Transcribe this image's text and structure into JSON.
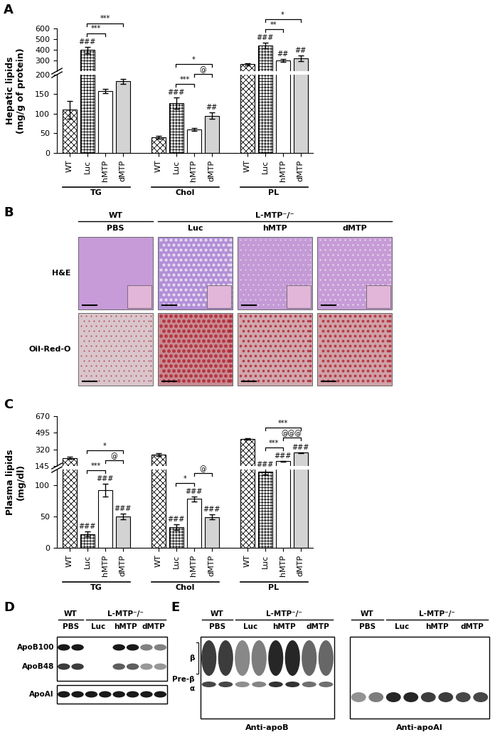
{
  "chart_data": [
    {
      "panel": "A",
      "type": "bar",
      "y_label": "Hepatic lipids\n(mg/g of protein)",
      "categories": [
        "TG",
        "Chol",
        "PL"
      ],
      "series": [
        {
          "name": "WT",
          "color": "#ffffff",
          "values": [
            110,
            40,
            265
          ],
          "errors": [
            22,
            3,
            10
          ]
        },
        {
          "name": "Luc",
          "color": "#ffffff",
          "values": [
            400,
            127,
            440
          ],
          "errors": [
            30,
            15,
            25
          ]
        },
        {
          "name": "hMTP",
          "color": "#ffffff",
          "values": [
            158,
            60,
            300
          ],
          "errors": [
            5,
            4,
            12
          ]
        },
        {
          "name": "dMTP",
          "color": "#d3d3d3",
          "values": [
            183,
            95,
            320
          ],
          "errors": [
            6,
            8,
            25
          ]
        }
      ],
      "ylim": [
        [
          0,
          200
        ],
        [
          200,
          600
        ]
      ],
      "yticks": [
        [
          0,
          50,
          100,
          150,
          200
        ],
        [
          300,
          400,
          500,
          600
        ]
      ],
      "markers": [
        {
          "category": "TG",
          "series": "Luc",
          "label": "###"
        },
        {
          "category": "Chol",
          "series": "Luc",
          "label": "###"
        },
        {
          "category": "Chol",
          "series": "dMTP",
          "label": "##"
        },
        {
          "category": "PL",
          "series": "Luc",
          "label": "###"
        },
        {
          "category": "PL",
          "series": "hMTP",
          "label": "##"
        },
        {
          "category": "PL",
          "series": "dMTP",
          "label": "##"
        }
      ],
      "comparisons": [
        {
          "category": "TG",
          "series": [
            "Luc",
            "hMTP"
          ],
          "label": "***"
        },
        {
          "category": "TG",
          "series": [
            "Luc",
            "dMTP"
          ],
          "label": "***"
        },
        {
          "category": "Chol",
          "series": [
            "Luc",
            "hMTP"
          ],
          "label": "***"
        },
        {
          "category": "Chol",
          "series": [
            "Luc",
            "dMTP"
          ],
          "label": "*"
        },
        {
          "category": "Chol",
          "series": [
            "hMTP",
            "dMTP"
          ],
          "label": "@"
        },
        {
          "category": "PL",
          "series": [
            "Luc",
            "hMTP"
          ],
          "label": "**"
        },
        {
          "category": "PL",
          "series": [
            "Luc",
            "dMTP"
          ],
          "label": "*"
        }
      ]
    },
    {
      "panel": "C",
      "type": "bar",
      "y_label": "Plasma lipids\n(mg/dl)",
      "categories": [
        "TG",
        "Chol",
        "PL"
      ],
      "series": [
        {
          "name": "WT",
          "color": "#ffffff",
          "values": [
            230,
            265,
            430
          ],
          "errors": [
            12,
            15,
            10
          ]
        },
        {
          "name": "Luc",
          "color": "#ffffff",
          "values": [
            22,
            33,
            122
          ],
          "errors": [
            4,
            5,
            5
          ]
        },
        {
          "name": "hMTP",
          "color": "#ffffff",
          "values": [
            92,
            78,
            195
          ],
          "errors": [
            10,
            4,
            5
          ]
        },
        {
          "name": "dMTP",
          "color": "#d3d3d3",
          "values": [
            50,
            49,
            285
          ],
          "errors": [
            5,
            4,
            5
          ]
        }
      ],
      "ylim": [
        [
          0,
          125
        ],
        [
          145,
          670
        ]
      ],
      "yticks": [
        [
          0,
          50,
          100
        ],
        [
          145,
          320,
          495,
          670
        ]
      ],
      "markers": [
        {
          "category": "TG",
          "series": "Luc",
          "label": "###"
        },
        {
          "category": "TG",
          "series": "hMTP",
          "label": "###"
        },
        {
          "category": "TG",
          "series": "dMTP",
          "label": "###"
        },
        {
          "category": "Chol",
          "series": "Luc",
          "label": "###"
        },
        {
          "category": "Chol",
          "series": "hMTP",
          "label": "###"
        },
        {
          "category": "Chol",
          "series": "dMTP",
          "label": "###"
        },
        {
          "category": "PL",
          "series": "Luc",
          "label": "###"
        },
        {
          "category": "PL",
          "series": "hMTP",
          "label": "###"
        },
        {
          "category": "PL",
          "series": "dMTP",
          "label": "###"
        }
      ],
      "comparisons": [
        {
          "category": "TG",
          "series": [
            "Luc",
            "hMTP"
          ],
          "label": "***"
        },
        {
          "category": "TG",
          "series": [
            "Luc",
            "dMTP"
          ],
          "label": "*"
        },
        {
          "category": "TG",
          "series": [
            "hMTP",
            "dMTP"
          ],
          "label": "@"
        },
        {
          "category": "Chol",
          "series": [
            "Luc",
            "hMTP"
          ],
          "label": "*"
        },
        {
          "category": "Chol",
          "series": [
            "hMTP",
            "dMTP"
          ],
          "label": "@"
        },
        {
          "category": "PL",
          "series": [
            "Luc",
            "hMTP"
          ],
          "label": "***"
        },
        {
          "category": "PL",
          "series": [
            "Luc",
            "dMTP"
          ],
          "label": "***"
        },
        {
          "category": "PL",
          "series": [
            "hMTP",
            "dMTP"
          ],
          "label": "@@@"
        }
      ]
    }
  ],
  "panel_B": {
    "panel": "B",
    "groups": [
      "WT",
      "L-MTP⁻/⁻"
    ],
    "columns": [
      "PBS",
      "Luc",
      "hMTP",
      "dMTP"
    ],
    "rows": [
      "H&E",
      "Oil-Red-O"
    ]
  },
  "panel_D": {
    "panel": "D",
    "groups": [
      "WT",
      "L-MTP⁻/⁻"
    ],
    "columns": [
      "PBS",
      "Luc",
      "hMTP",
      "dMTP"
    ],
    "bands": [
      "ApoB100",
      "ApoB48",
      "ApoAI"
    ]
  },
  "panel_E": {
    "panel": "E",
    "groups": [
      "WT",
      "L-MTP⁻/⁻"
    ],
    "columns": [
      "PBS",
      "Luc",
      "hMTP",
      "dMTP"
    ],
    "mobility": [
      "β",
      "Pre-β",
      "α"
    ],
    "blots": [
      "Anti-apoB",
      "Anti-apoAI"
    ]
  }
}
